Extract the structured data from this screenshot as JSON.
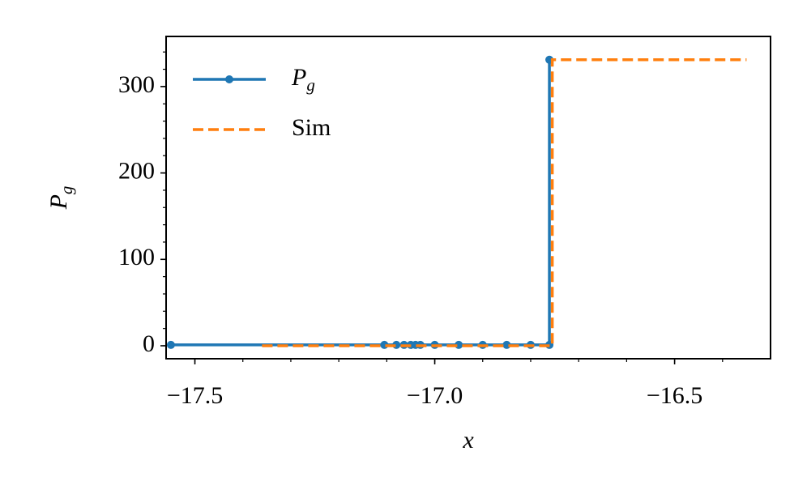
{
  "chart_data": {
    "type": "line",
    "xlabel": "x",
    "ylabel": "Pg",
    "xlim": [
      -17.56,
      -16.3
    ],
    "ylim": [
      -15,
      358
    ],
    "xticks": [
      -17.5,
      -17.0,
      -16.5
    ],
    "yticks": [
      0,
      100,
      200,
      300
    ],
    "minor_ticks": true,
    "legend": "upper left",
    "series": [
      {
        "name": "Pg",
        "color": "#1f77b4",
        "style": "solid",
        "markers": true,
        "x": [
          -17.55,
          -17.105,
          -17.08,
          -17.064,
          -17.05,
          -17.04,
          -17.03,
          -17.0,
          -16.95,
          -16.9,
          -16.85,
          -16.8,
          -16.761,
          -16.761
        ],
        "values": [
          1,
          1,
          1,
          1,
          1,
          1,
          1,
          1,
          1,
          1,
          1,
          1,
          1,
          331
        ]
      },
      {
        "name": "Sim",
        "color": "#ff7f0e",
        "style": "dashed",
        "markers": false,
        "x": [
          -17.36,
          -16.755,
          -16.755,
          -16.35
        ],
        "values": [
          0,
          0,
          331,
          331
        ]
      }
    ]
  }
}
